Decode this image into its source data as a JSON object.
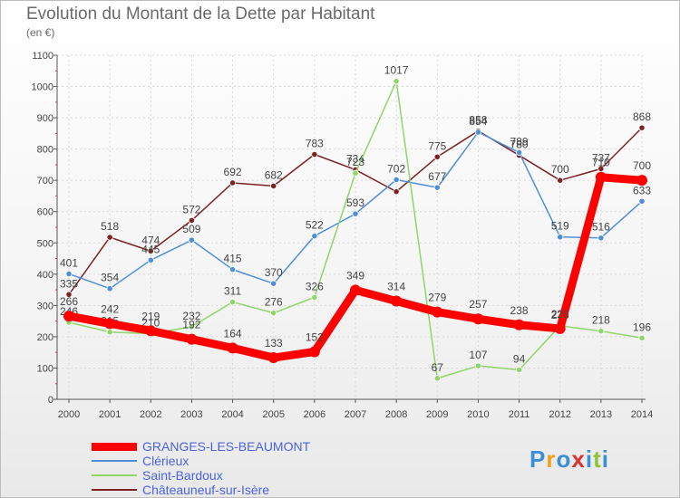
{
  "chart_data": {
    "type": "line",
    "title": "Evolution du Montant de la Dette par Habitant",
    "subtitle": "(en €)",
    "categories": [
      "2000",
      "2001",
      "2002",
      "2003",
      "2004",
      "2005",
      "2006",
      "2007",
      "2008",
      "2009",
      "2010",
      "2011",
      "2012",
      "2013",
      "2014"
    ],
    "ylim": [
      0,
      1100
    ],
    "yticks": [
      "0",
      "100",
      "200",
      "300",
      "400",
      "500",
      "600",
      "700",
      "800",
      "900",
      "1000",
      "1100"
    ],
    "grid": true,
    "legend_position": "bottom-left",
    "series": [
      {
        "name": "Châteauneuf-sur-Isère",
        "color": "#7b2222",
        "values": [
          335,
          518,
          474,
          572,
          692,
          682,
          783,
          734,
          664,
          775,
          858,
          780,
          700,
          737,
          868
        ],
        "labels": [
          "335",
          "518",
          "474",
          "572",
          "692",
          "682",
          "783",
          "734",
          "",
          "775",
          "858",
          "780",
          "700",
          "737",
          "868"
        ]
      },
      {
        "name": "Clérieux",
        "color": "#4f8fd8",
        "values": [
          401,
          354,
          445,
          509,
          415,
          370,
          522,
          593,
          702,
          677,
          854,
          789,
          519,
          516,
          633
        ],
        "labels": [
          "401",
          "354",
          "445",
          "509",
          "415",
          "370",
          "522",
          "593",
          "702",
          "677",
          "854",
          "789",
          "519",
          "516",
          "633"
        ]
      },
      {
        "name": "Saint-Bardoux",
        "color": "#8fd56a",
        "values": [
          246,
          215,
          210,
          232,
          311,
          276,
          326,
          723,
          1017,
          67,
          107,
          94,
          235,
          218,
          196
        ],
        "labels": [
          "246",
          "215",
          "210",
          "232",
          "311",
          "276",
          "326",
          "723",
          "1017",
          "67",
          "107",
          "94",
          "235",
          "218",
          "196"
        ]
      },
      {
        "name": "GRANGES-LES-BEAUMONT",
        "color": "#ff0000",
        "values": [
          266,
          242,
          219,
          192,
          164,
          133,
          152,
          349,
          314,
          279,
          257,
          238,
          226,
          710,
          700
        ],
        "labels": [
          "266",
          "242",
          "219",
          "192",
          "164",
          "133",
          "152",
          "349",
          "314",
          "279",
          "257",
          "238",
          "226",
          "710",
          "700"
        ]
      }
    ]
  },
  "legend": {
    "items": [
      {
        "label": "GRANGES-LES-BEAUMONT",
        "color": "#ff0000"
      },
      {
        "label": "Clérieux",
        "color": "#4f8fd8"
      },
      {
        "label": "Saint-Bardoux",
        "color": "#8fd56a"
      },
      {
        "label": "Châteauneuf-sur-Isère",
        "color": "#7b2222"
      }
    ]
  },
  "logo": {
    "text": "Proxiti"
  }
}
